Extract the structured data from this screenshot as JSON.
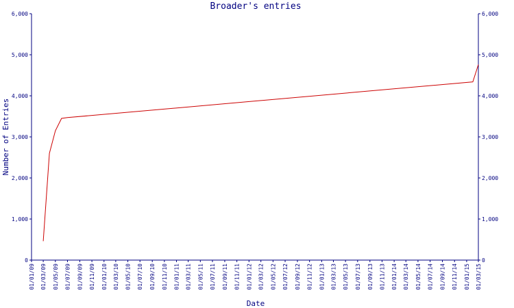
{
  "chart_data": {
    "type": "line",
    "title": "Broader's entries",
    "xlabel": "Date",
    "ylabel": "Number of Entries",
    "ylim": [
      0,
      6000
    ],
    "y_ticks": [
      {
        "value": 0,
        "label": "0"
      },
      {
        "value": 1000,
        "label": "1,000"
      },
      {
        "value": 2000,
        "label": "2,000"
      },
      {
        "value": 3000,
        "label": "3,000"
      },
      {
        "value": 4000,
        "label": "4,000"
      },
      {
        "value": 5000,
        "label": "5,000"
      },
      {
        "value": 6000,
        "label": "6,000"
      }
    ],
    "x_ticks": [
      "01/01/09",
      "01/03/09",
      "01/05/09",
      "01/07/09",
      "01/09/09",
      "01/11/09",
      "01/01/10",
      "01/03/10",
      "01/05/10",
      "01/07/10",
      "01/09/10",
      "01/11/10",
      "01/01/11",
      "01/03/11",
      "01/05/11",
      "01/07/11",
      "01/09/11",
      "01/11/11",
      "01/01/12",
      "01/03/12",
      "01/05/12",
      "01/07/12",
      "01/09/12",
      "01/11/12",
      "01/01/13",
      "01/03/13",
      "01/05/13",
      "01/07/13",
      "01/09/13",
      "01/11/13",
      "01/01/14",
      "01/03/14",
      "01/05/14",
      "01/07/14",
      "01/09/14",
      "01/11/14",
      "01/01/15",
      "01/03/15"
    ],
    "grid": false,
    "line_color": "#cc0000",
    "axis_color": "#000080",
    "series": [
      {
        "x": [
          "2009-03-01",
          "2009-04-01",
          "2009-05-01",
          "2009-06-01",
          "2009-07-01",
          "2015-02-01",
          "2015-03-01"
        ],
        "y": [
          460,
          2600,
          3150,
          3450,
          3470,
          4340,
          4760
        ]
      }
    ]
  }
}
